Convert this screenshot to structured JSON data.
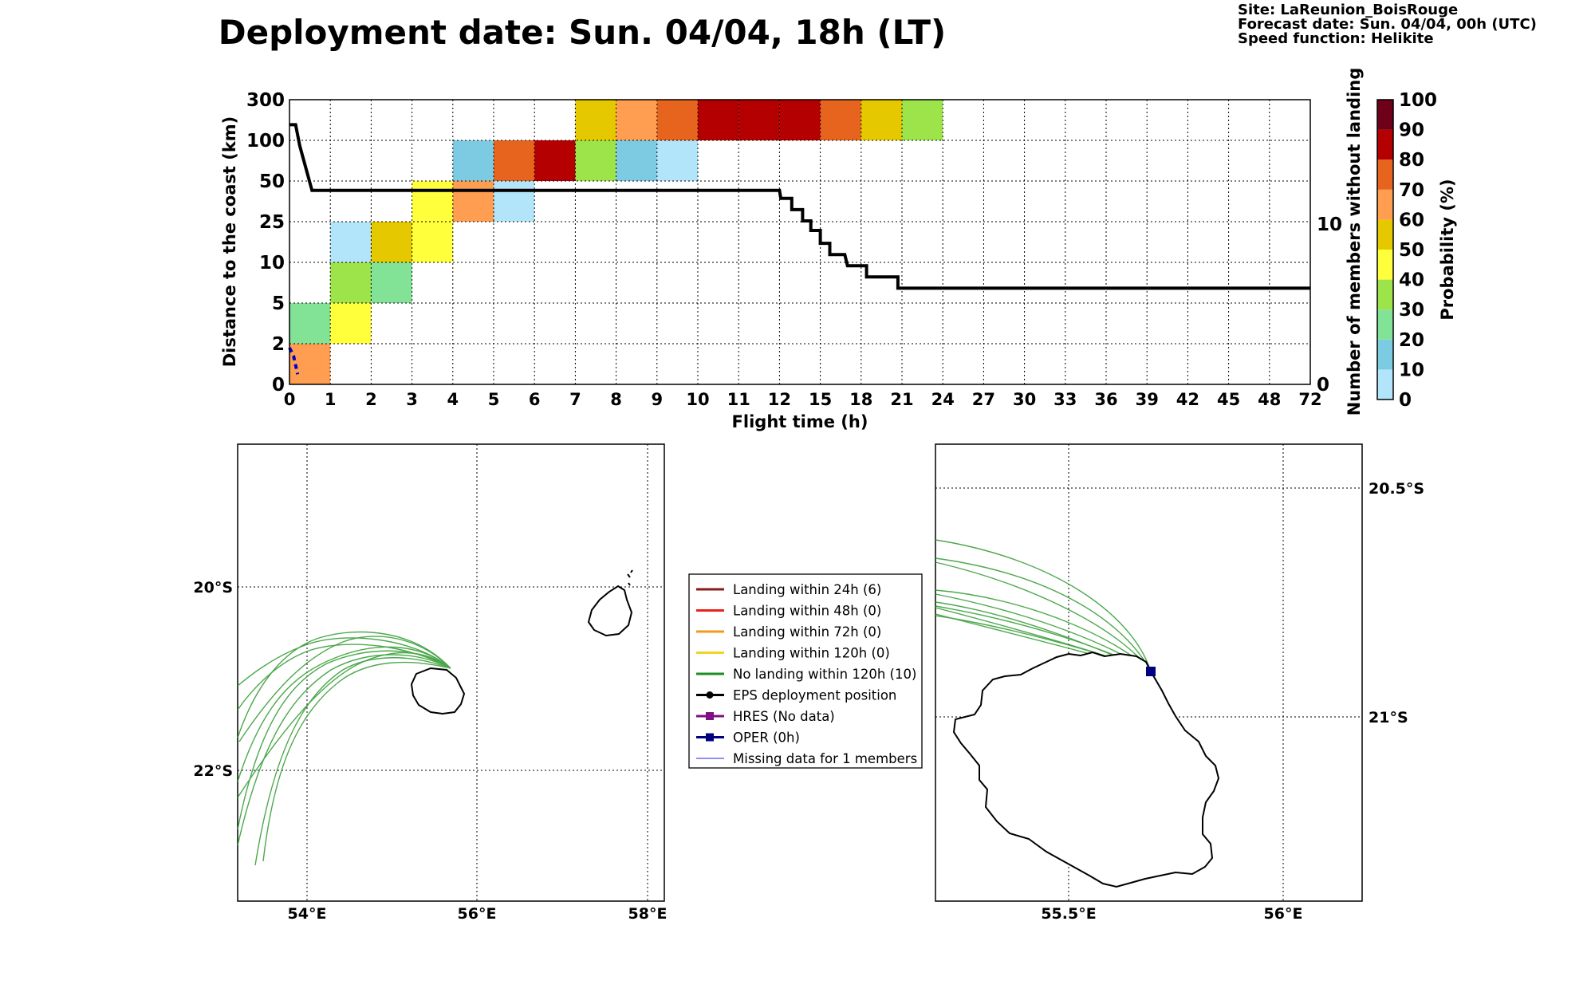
{
  "header": {
    "title": "Deployment date: Sun. 04/04, 18h (LT)",
    "site": "Site: LaReunion_BoisRouge",
    "forecast": "Forecast date: Sun. 04/04, 00h (UTC)",
    "speed": "Speed function: Helikite"
  },
  "colorbar": {
    "label": "Probability (%)",
    "ticks": [
      "0",
      "10",
      "20",
      "30",
      "40",
      "50",
      "60",
      "70",
      "80",
      "90",
      "100"
    ],
    "colors": [
      "#b3e5fa",
      "#7dcbe3",
      "#82e397",
      "#9de34a",
      "#ffff3c",
      "#e6c800",
      "#ff9e50",
      "#e6641e",
      "#b40000",
      "#6e0019"
    ]
  },
  "chart_data": {
    "type": "heatmap",
    "xlabel": "Flight time (h)",
    "ylabel": "Distance to the coast (km)",
    "y2label": "Number of members without landing",
    "x_ticks": [
      "0",
      "1",
      "2",
      "3",
      "4",
      "5",
      "6",
      "7",
      "8",
      "9",
      "10",
      "11",
      "12",
      "15",
      "18",
      "21",
      "24",
      "27",
      "30",
      "33",
      "36",
      "39",
      "42",
      "45",
      "48",
      "72"
    ],
    "y_ticks": [
      "0",
      "2",
      "5",
      "10",
      "25",
      "50",
      "100",
      "300"
    ],
    "y2_ticks": [
      "0",
      "10"
    ],
    "grid": true,
    "cells": [
      {
        "x": [
          0,
          1
        ],
        "y": [
          0,
          2
        ],
        "p": 60
      },
      {
        "x": [
          0,
          1
        ],
        "y": [
          2,
          5
        ],
        "p": 20
      },
      {
        "x": [
          1,
          2
        ],
        "y": [
          2,
          5
        ],
        "p": 40
      },
      {
        "x": [
          1,
          2
        ],
        "y": [
          5,
          10
        ],
        "p": 30
      },
      {
        "x": [
          1,
          2
        ],
        "y": [
          10,
          25
        ],
        "p": 0
      },
      {
        "x": [
          2,
          3
        ],
        "y": [
          5,
          10
        ],
        "p": 20
      },
      {
        "x": [
          2,
          3
        ],
        "y": [
          10,
          25
        ],
        "p": 50
      },
      {
        "x": [
          3,
          4
        ],
        "y": [
          10,
          25
        ],
        "p": 40
      },
      {
        "x": [
          3,
          4
        ],
        "y": [
          25,
          50
        ],
        "p": 40
      },
      {
        "x": [
          4,
          5
        ],
        "y": [
          25,
          50
        ],
        "p": 60
      },
      {
        "x": [
          4,
          5
        ],
        "y": [
          50,
          100
        ],
        "p": 10
      },
      {
        "x": [
          5,
          6
        ],
        "y": [
          25,
          50
        ],
        "p": 0
      },
      {
        "x": [
          5,
          6
        ],
        "y": [
          50,
          100
        ],
        "p": 70
      },
      {
        "x": [
          6,
          7
        ],
        "y": [
          50,
          100
        ],
        "p": 80
      },
      {
        "x": [
          7,
          8
        ],
        "y": [
          50,
          100
        ],
        "p": 30
      },
      {
        "x": [
          7,
          8
        ],
        "y": [
          100,
          300
        ],
        "p": 50
      },
      {
        "x": [
          8,
          9
        ],
        "y": [
          50,
          100
        ],
        "p": 10
      },
      {
        "x": [
          8,
          9
        ],
        "y": [
          100,
          300
        ],
        "p": 60
      },
      {
        "x": [
          9,
          10
        ],
        "y": [
          50,
          100
        ],
        "p": 0
      },
      {
        "x": [
          9,
          10
        ],
        "y": [
          100,
          300
        ],
        "p": 70
      },
      {
        "x": [
          10,
          11
        ],
        "y": [
          100,
          300
        ],
        "p": 80
      },
      {
        "x": [
          11,
          12
        ],
        "y": [
          100,
          300
        ],
        "p": 80
      },
      {
        "x": [
          12,
          15
        ],
        "y": [
          100,
          300
        ],
        "p": 80
      },
      {
        "x": [
          15,
          18
        ],
        "y": [
          100,
          300
        ],
        "p": 70
      },
      {
        "x": [
          18,
          21
        ],
        "y": [
          100,
          300
        ],
        "p": 50
      },
      {
        "x": [
          21,
          24
        ],
        "y": [
          100,
          300
        ],
        "p": 30
      }
    ],
    "members_line": [
      [
        0,
        16.2
      ],
      [
        0.15,
        16.2
      ],
      [
        0.25,
        14.9
      ],
      [
        0.55,
        12.1
      ],
      [
        12,
        12.1
      ],
      [
        12.1,
        11.6
      ],
      [
        12.9,
        11.6
      ],
      [
        12.9,
        10.9
      ],
      [
        13.7,
        10.9
      ],
      [
        13.7,
        10.2
      ],
      [
        14.3,
        10.2
      ],
      [
        14.3,
        9.6
      ],
      [
        15,
        9.6
      ],
      [
        15,
        8.8
      ],
      [
        15.7,
        8.8
      ],
      [
        15.7,
        8.1
      ],
      [
        16.8,
        8.1
      ],
      [
        17,
        7.4
      ],
      [
        18.4,
        7.4
      ],
      [
        18.4,
        6.7
      ],
      [
        20.7,
        6.7
      ],
      [
        20.7,
        6.0
      ],
      [
        72,
        6.0
      ]
    ],
    "missing_line_x": [
      0.0,
      0.1,
      0.2
    ],
    "missing_line_y": [
      1.8,
      1.4,
      0.5
    ]
  },
  "maps": {
    "left": {
      "lon_ticks": [
        "54°E",
        "56°E",
        "58°E"
      ],
      "lat_ticks": [
        "20°S",
        "22°S"
      ]
    },
    "right": {
      "lon_ticks": [
        "55.5°E",
        "56°E"
      ],
      "lat_ticks": [
        "20.5°S",
        "21°S"
      ]
    }
  },
  "legend": {
    "items": [
      {
        "label": "Landing within 24h (6)",
        "color": "#8b1a1a",
        "kind": "line"
      },
      {
        "label": "Landing within 48h (0)",
        "color": "#e8221c",
        "kind": "line"
      },
      {
        "label": "Landing within 72h (0)",
        "color": "#f39a19",
        "kind": "line"
      },
      {
        "label": "Landing within 120h (0)",
        "color": "#f2d524",
        "kind": "line"
      },
      {
        "label": "No landing within 120h (10)",
        "color": "#1e8c1e",
        "kind": "line"
      },
      {
        "label": "EPS deployment position",
        "color": "#000000",
        "kind": "dot"
      },
      {
        "label": "HRES (No data)",
        "color": "#7d1183",
        "kind": "square"
      },
      {
        "label": "OPER (0h)",
        "color": "#000080",
        "kind": "square"
      },
      {
        "label": "Missing data for 1 members",
        "color": "#6a6af5",
        "kind": "thin"
      }
    ]
  }
}
